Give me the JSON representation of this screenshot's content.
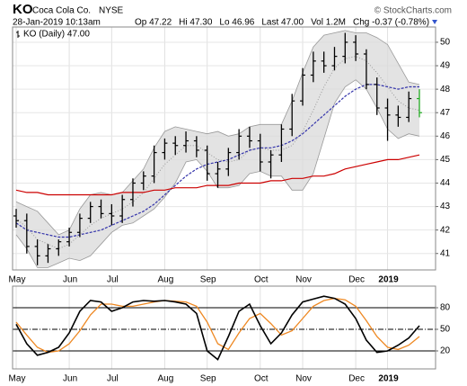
{
  "header": {
    "symbol": "KO",
    "name": "Coca Cola Co.",
    "exchange": "NYSE",
    "copyright": "© StockCharts.com",
    "timestamp": "28-Jan-2019 10:13am",
    "quote": [
      "Op 47.22",
      "Hi 47.30",
      "Lo 46.96",
      "Last 47.00",
      "Vol 1.2M",
      "Chg -0.37 (-0.78%)"
    ]
  },
  "chart_data": [
    {
      "type": "ohlc",
      "legend": "KO (Daily) 47.00",
      "categories": [
        "May",
        null,
        null,
        null,
        null,
        "Jun",
        null,
        null,
        null,
        "Jul",
        null,
        null,
        null,
        null,
        "Aug",
        null,
        null,
        null,
        "Sep",
        null,
        null,
        null,
        null,
        "Oct",
        null,
        null,
        null,
        "Nov",
        null,
        null,
        null,
        null,
        "Dec",
        null,
        null,
        "2019",
        null,
        null,
        null
      ],
      "open": [
        42.6,
        42.4,
        41.3,
        40.9,
        41.2,
        41.5,
        41.9,
        42.5,
        43.0,
        42.7,
        42.6,
        43.3,
        44.0,
        44.3,
        45.3,
        45.7,
        45.6,
        45.8,
        45.4,
        44.4,
        44.6,
        45.3,
        46.0,
        45.8,
        44.9,
        45.2,
        46.3,
        47.5,
        48.6,
        49.2,
        49.0,
        49.4,
        50.0,
        49.5,
        48.2,
        47.2,
        46.9,
        46.8,
        47.6
      ],
      "high": [
        42.9,
        42.7,
        41.6,
        41.4,
        41.6,
        42.1,
        42.7,
        43.2,
        43.3,
        43.1,
        43.5,
        44.2,
        44.5,
        45.6,
        45.9,
        46.0,
        46.2,
        46.0,
        45.6,
        44.9,
        45.5,
        46.3,
        46.4,
        46.1,
        45.4,
        46.5,
        47.8,
        48.9,
        49.6,
        49.6,
        49.8,
        50.4,
        50.3,
        49.7,
        48.5,
        47.6,
        47.3,
        47.9,
        48.0
      ],
      "low": [
        42.1,
        41.0,
        40.5,
        40.6,
        40.9,
        41.3,
        41.7,
        42.3,
        42.5,
        42.2,
        42.3,
        43.0,
        43.7,
        44.0,
        45.0,
        45.2,
        45.3,
        45.1,
        44.1,
        43.8,
        44.3,
        45.0,
        45.5,
        44.5,
        44.2,
        44.9,
        46.0,
        47.3,
        48.3,
        48.7,
        48.8,
        49.1,
        49.2,
        48.0,
        46.9,
        45.8,
        46.4,
        46.6,
        46.8
      ],
      "close": [
        42.4,
        41.3,
        40.9,
        41.2,
        41.5,
        41.9,
        42.5,
        43.0,
        42.7,
        42.6,
        43.3,
        44.0,
        44.3,
        45.3,
        45.7,
        45.6,
        45.8,
        45.4,
        44.4,
        44.6,
        45.3,
        46.0,
        45.8,
        44.9,
        45.2,
        46.3,
        47.5,
        48.6,
        49.2,
        49.0,
        49.4,
        50.0,
        49.5,
        48.2,
        47.2,
        46.9,
        46.8,
        47.6,
        47.0
      ],
      "color": "#000000",
      "last_color": "#22aa22",
      "band": {
        "color": "#d9d9d9",
        "edge_color": "#999999",
        "upper": [
          43.2,
          43.0,
          42.8,
          42.3,
          41.8,
          42.0,
          42.9,
          43.5,
          43.6,
          43.5,
          43.6,
          44.1,
          44.6,
          45.5,
          46.2,
          46.4,
          46.3,
          46.2,
          46.1,
          46.2,
          46.0,
          46.1,
          46.4,
          46.5,
          46.5,
          46.5,
          47.5,
          48.7,
          49.8,
          50.3,
          50.4,
          50.5,
          50.4,
          50.4,
          50.2,
          49.9,
          49.1,
          48.3,
          48.2
        ],
        "middle": [
          42.5,
          42.1,
          41.6,
          41.4,
          41.2,
          41.4,
          41.8,
          42.2,
          42.5,
          42.7,
          42.9,
          43.2,
          43.6,
          44.2,
          44.8,
          45.2,
          45.6,
          45.6,
          45.3,
          45.0,
          44.9,
          45.0,
          45.4,
          45.5,
          45.4,
          45.4,
          45.6,
          46.2,
          47.1,
          48.1,
          48.9,
          49.3,
          49.4,
          49.2,
          48.7,
          48.1,
          47.5,
          47.2,
          47.1
        ],
        "lower": [
          41.8,
          41.2,
          40.4,
          40.4,
          40.6,
          40.8,
          40.7,
          40.9,
          41.4,
          41.9,
          42.2,
          42.3,
          42.6,
          42.9,
          43.4,
          44.0,
          44.9,
          45.0,
          44.5,
          43.8,
          43.8,
          43.9,
          44.4,
          44.5,
          44.3,
          44.3,
          43.7,
          43.7,
          44.4,
          45.9,
          47.4,
          48.1,
          48.4,
          48.0,
          47.2,
          46.3,
          45.9,
          46.1,
          46.0
        ]
      },
      "lines": [
        {
          "color": "#3333aa",
          "dash": true,
          "values": [
            42.3,
            42.0,
            41.9,
            41.8,
            41.7,
            41.7,
            41.8,
            41.9,
            42.0,
            42.2,
            42.4,
            42.6,
            42.8,
            43.1,
            43.5,
            43.9,
            44.3,
            44.6,
            44.8,
            44.9,
            45.0,
            45.2,
            45.4,
            45.5,
            45.5,
            45.6,
            45.8,
            46.1,
            46.5,
            46.9,
            47.3,
            47.7,
            48.0,
            48.2,
            48.2,
            48.1,
            48.0,
            48.1,
            48.1
          ]
        },
        {
          "color": "#cc0000",
          "dash": false,
          "values": [
            43.7,
            43.6,
            43.6,
            43.5,
            43.5,
            43.5,
            43.5,
            43.5,
            43.5,
            43.5,
            43.6,
            43.6,
            43.6,
            43.7,
            43.7,
            43.8,
            43.8,
            43.8,
            43.9,
            43.9,
            43.9,
            44.0,
            44.0,
            44.0,
            44.1,
            44.1,
            44.2,
            44.2,
            44.3,
            44.3,
            44.4,
            44.6,
            44.7,
            44.8,
            44.9,
            45.0,
            45.0,
            45.1,
            45.2
          ]
        }
      ],
      "ylim": [
        40.3,
        50.65
      ],
      "yticks": [
        41,
        42,
        43,
        44,
        45,
        46,
        47,
        48,
        49,
        50
      ],
      "grid": true
    },
    {
      "type": "line",
      "categories": [
        "May",
        null,
        null,
        null,
        null,
        "Jun",
        null,
        null,
        null,
        "Jul",
        null,
        null,
        null,
        null,
        "Aug",
        null,
        null,
        null,
        "Sep",
        null,
        null,
        null,
        null,
        "Oct",
        null,
        null,
        null,
        "Nov",
        null,
        null,
        null,
        null,
        "Dec",
        null,
        null,
        "2019",
        null,
        null,
        null
      ],
      "series": [
        {
          "color": "#000000",
          "values": [
            57,
            30,
            14,
            18,
            25,
            45,
            75,
            90,
            88,
            75,
            80,
            88,
            90,
            89,
            90,
            88,
            85,
            72,
            20,
            8,
            40,
            75,
            85,
            55,
            30,
            45,
            70,
            88,
            92,
            96,
            93,
            85,
            65,
            35,
            18,
            20,
            28,
            38,
            55
          ]
        },
        {
          "color": "#ee8822",
          "values": [
            60,
            42,
            25,
            18,
            20,
            30,
            48,
            70,
            85,
            85,
            82,
            82,
            85,
            88,
            90,
            89,
            88,
            82,
            60,
            30,
            22,
            45,
            65,
            72,
            58,
            42,
            48,
            65,
            82,
            90,
            93,
            91,
            82,
            62,
            40,
            25,
            22,
            28,
            40
          ]
        }
      ],
      "ylim": [
        -5,
        110
      ],
      "yticks": [
        20,
        50,
        80
      ],
      "grid": true
    }
  ]
}
